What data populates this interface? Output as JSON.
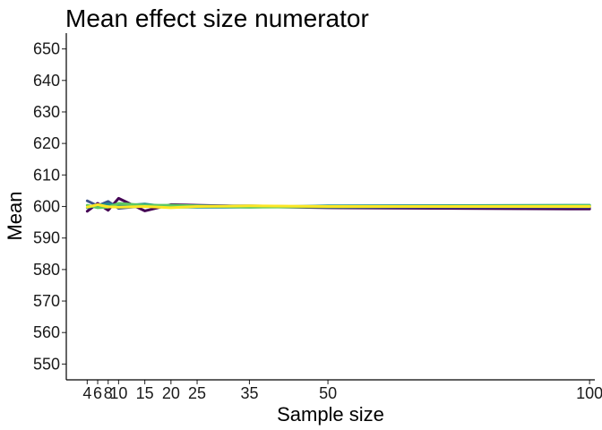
{
  "chart_data": {
    "type": "line",
    "title": "Mean effect size numerator",
    "xlabel": "Sample size",
    "ylabel": "Mean",
    "xlim": [
      0,
      101
    ],
    "ylim": [
      545,
      655
    ],
    "x_ticks": [
      4,
      6,
      8,
      10,
      15,
      20,
      25,
      35,
      50,
      100
    ],
    "y_ticks": [
      550,
      560,
      570,
      580,
      590,
      600,
      610,
      620,
      630,
      640,
      650
    ],
    "grid": false,
    "legend": "none",
    "x": [
      4,
      6,
      8,
      10,
      15,
      20,
      25,
      35,
      50,
      100
    ],
    "series": [
      {
        "color": "#440154",
        "values": [
          598.5,
          601.0,
          598.8,
          602.6,
          598.6,
          600.6,
          600.4,
          600.0,
          599.6,
          599.2
        ]
      },
      {
        "color": "#3b528b",
        "values": [
          601.8,
          600.2,
          601.6,
          599.4,
          600.2,
          599.8,
          600.2,
          600.2,
          599.8,
          599.8
        ]
      },
      {
        "color": "#21918c",
        "values": [
          599.6,
          600.4,
          600.8,
          600.2,
          600.8,
          599.8,
          599.8,
          599.8,
          600.2,
          600.4
        ]
      },
      {
        "color": "#5ec962",
        "values": [
          600.4,
          599.6,
          599.8,
          601.0,
          600.4,
          600.4,
          600.2,
          599.8,
          599.9,
          600.3
        ]
      },
      {
        "color": "#fde725",
        "values": [
          599.8,
          600.6,
          599.9,
          599.8,
          600.0,
          599.6,
          600.0,
          600.2,
          600.0,
          600.0
        ]
      }
    ]
  }
}
